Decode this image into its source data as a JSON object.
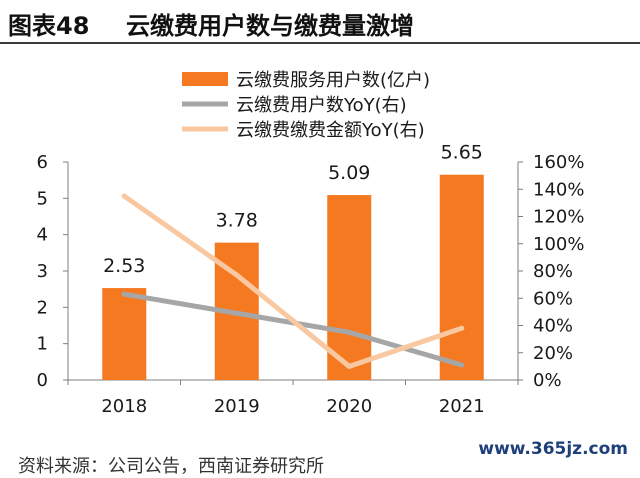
{
  "figure": {
    "number": "图表48",
    "title": "云缴费用户数与缴费量激增"
  },
  "source_note": "资料来源：公司公告，西南证券研究所",
  "watermark": "www.365jz.com",
  "colors": {
    "bar": "#F47920",
    "users_yoy": "#A6A6A6",
    "amount_yoy": "#F9C8A0",
    "axis": "#7f7f7f",
    "text": "#1a1a1a"
  },
  "chart_data": {
    "type": "bar",
    "categories": [
      "2018",
      "2019",
      "2020",
      "2021"
    ],
    "series": [
      {
        "name": "云缴费服务用户数(亿户)",
        "type": "bar",
        "axis": "left",
        "values": [
          2.53,
          3.78,
          5.09,
          5.65
        ],
        "labels": [
          "2.53",
          "3.78",
          "5.09",
          "5.65"
        ]
      },
      {
        "name": "云缴费用户数YoY(右)",
        "type": "line",
        "axis": "right",
        "values": [
          0.63,
          0.49,
          0.35,
          0.11
        ]
      },
      {
        "name": "云缴费缴费金额YoY(右)",
        "type": "line",
        "axis": "right",
        "values": [
          1.35,
          0.77,
          0.1,
          0.38
        ]
      }
    ],
    "y_left": {
      "range": [
        0,
        6
      ],
      "ticks": [
        "0",
        "1",
        "2",
        "3",
        "4",
        "5",
        "6"
      ]
    },
    "y_right": {
      "range": [
        0,
        1.6
      ],
      "ticks": [
        "0%",
        "20%",
        "40%",
        "60%",
        "80%",
        "100%",
        "120%",
        "140%",
        "160%"
      ]
    },
    "legend_position": "top",
    "grid": false
  }
}
